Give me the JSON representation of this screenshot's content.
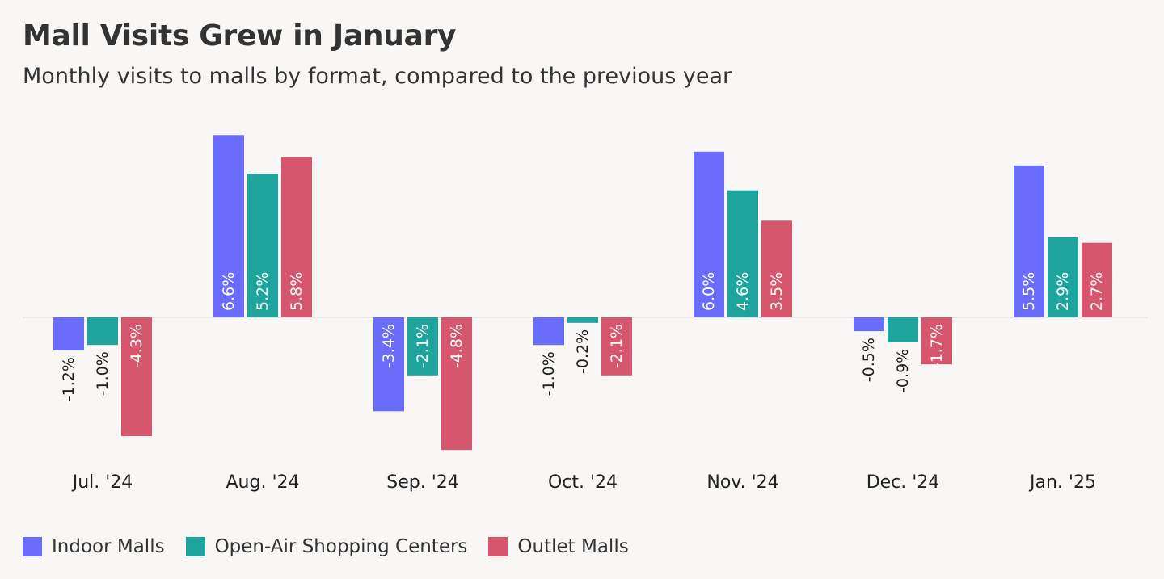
{
  "title": "Mall Visits Grew in January",
  "subtitle": "Monthly visits to malls by format, compared to the previous year",
  "chart_data": {
    "type": "bar",
    "title": "Mall Visits Grew in January",
    "subtitle": "Monthly visits to malls by format, compared to the previous year",
    "categories": [
      "Jul. '24",
      "Aug. '24",
      "Sep. '24",
      "Oct. '24",
      "Nov. '24",
      "Dec. '24",
      "Jan. '25"
    ],
    "series": [
      {
        "name": "Indoor Malls",
        "color": "#6a6dfc",
        "values": [
          -1.2,
          6.6,
          -3.4,
          -1.0,
          6.0,
          -0.5,
          5.5
        ]
      },
      {
        "name": "Open-Air Shopping Centers",
        "color": "#1fa39d",
        "values": [
          -1.0,
          5.2,
          -2.1,
          -0.2,
          4.6,
          -0.9,
          2.9
        ]
      },
      {
        "name": "Outlet Malls",
        "color": "#d6566e",
        "values": [
          -4.3,
          5.8,
          -4.8,
          -2.1,
          3.5,
          -1.7,
          2.7
        ]
      }
    ],
    "value_suffix": "%",
    "data_labels": "rotated-inside-bars",
    "grid": false,
    "legend_position": "bottom-left"
  }
}
